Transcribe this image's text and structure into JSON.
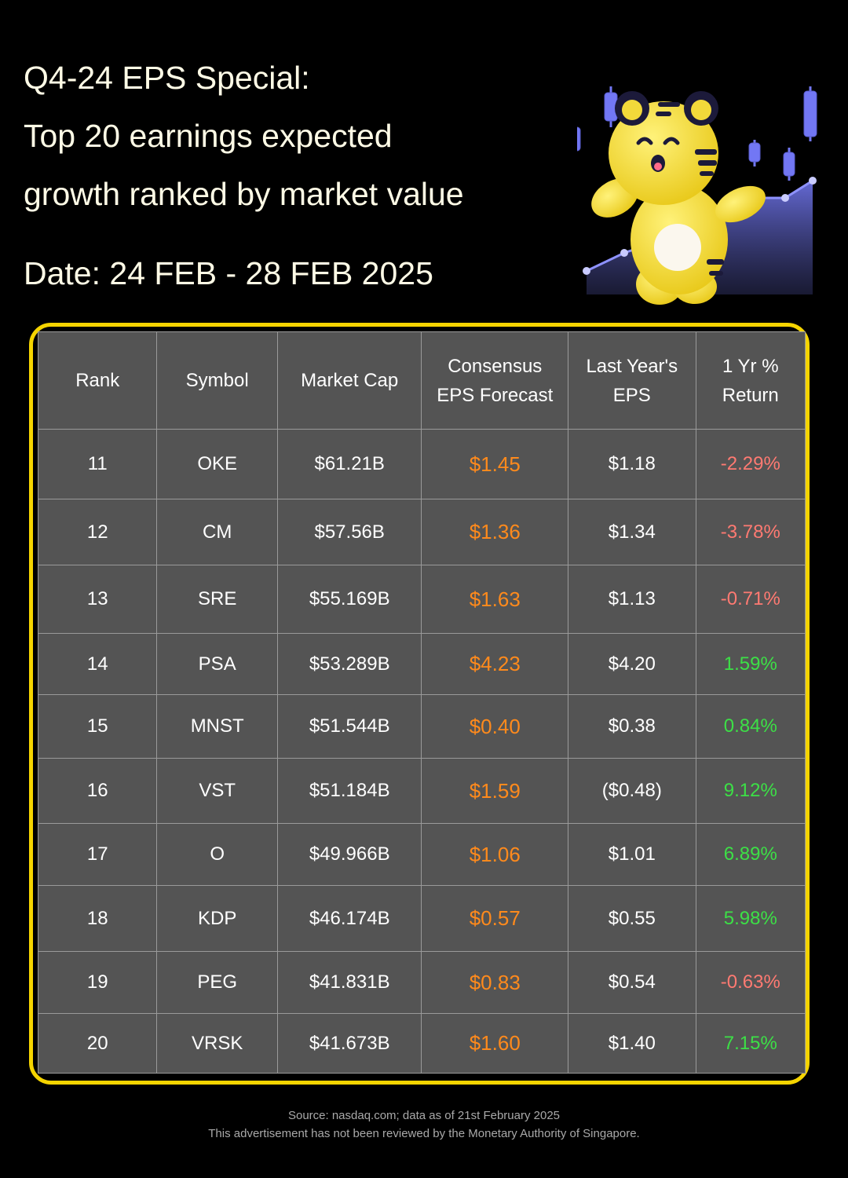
{
  "header": {
    "title_lines": [
      "Q4-24 EPS Special:",
      "Top 20 earnings expected",
      "growth ranked by market value"
    ],
    "date": "Date: 24 FEB - 28 FEB 2025"
  },
  "mascot": {
    "icon": "tiger-mascot-icon",
    "colors": {
      "body": "#f7e43a",
      "stripes": "#1c1a3a",
      "candles": "#6f74f2",
      "area": "#5a5ec8"
    }
  },
  "table": {
    "headers": {
      "rank": "Rank",
      "symbol": "Symbol",
      "market_cap": "Market Cap",
      "consensus": [
        "Consensus",
        "EPS Forecast"
      ],
      "last_year": [
        "Last Year's",
        "EPS"
      ],
      "return": [
        "1 Yr %",
        "Return"
      ]
    },
    "rows": [
      {
        "rank": "11",
        "symbol": "OKE",
        "market_cap": "$61.21B",
        "consensus": "$1.45",
        "last_year": "$1.18",
        "return": "-2.29%",
        "trend": "neg"
      },
      {
        "rank": "12",
        "symbol": "CM",
        "market_cap": "$57.56B",
        "consensus": "$1.36",
        "last_year": "$1.34",
        "return": "-3.78%",
        "trend": "neg"
      },
      {
        "rank": "13",
        "symbol": "SRE",
        "market_cap": "$55.169B",
        "consensus": "$1.63",
        "last_year": "$1.13",
        "return": "-0.71%",
        "trend": "neg"
      },
      {
        "rank": "14",
        "symbol": "PSA",
        "market_cap": "$53.289B",
        "consensus": "$4.23",
        "last_year": "$4.20",
        "return": "1.59%",
        "trend": "pos"
      },
      {
        "rank": "15",
        "symbol": "MNST",
        "market_cap": "$51.544B",
        "consensus": "$0.40",
        "last_year": "$0.38",
        "return": "0.84%",
        "trend": "pos"
      },
      {
        "rank": "16",
        "symbol": "VST",
        "market_cap": "$51.184B",
        "consensus": "$1.59",
        "last_year": "($0.48)",
        "return": "9.12%",
        "trend": "pos"
      },
      {
        "rank": "17",
        "symbol": "O",
        "market_cap": "$49.966B",
        "consensus": "$1.06",
        "last_year": "$1.01",
        "return": "6.89%",
        "trend": "pos"
      },
      {
        "rank": "18",
        "symbol": "KDP",
        "market_cap": "$46.174B",
        "consensus": "$0.57",
        "last_year": "$0.55",
        "return": "5.98%",
        "trend": "pos"
      },
      {
        "rank": "19",
        "symbol": "PEG",
        "market_cap": "$41.831B",
        "consensus": "$0.83",
        "last_year": "$0.54",
        "return": "-0.63%",
        "trend": "neg"
      },
      {
        "rank": "20",
        "symbol": "VRSK",
        "market_cap": "$41.673B",
        "consensus": "$1.60",
        "last_year": "$1.40",
        "return": "7.15%",
        "trend": "pos"
      }
    ],
    "colors": {
      "frame": "#f5d400",
      "cell_bg": "#545454",
      "forecast": "#ff8a1c",
      "negative": "#ff7a72",
      "positive": "#3ce046"
    }
  },
  "footer": {
    "source": "Source: nasdaq.com; data as of 21st February 2025",
    "disclaimer": "This advertisement has not been reviewed by the Monetary Authority of Singapore."
  }
}
